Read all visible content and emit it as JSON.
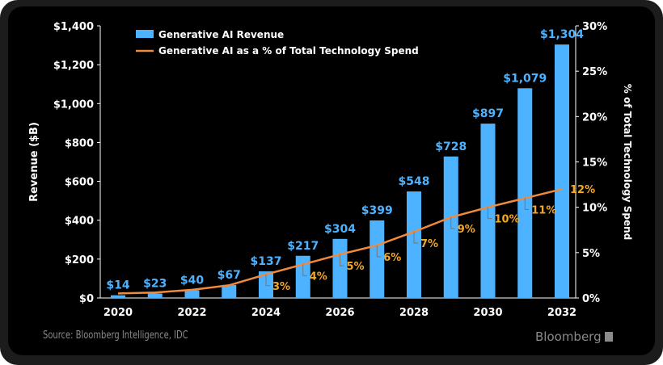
{
  "chart_data": {
    "type": "bar",
    "categories": [
      2020,
      2021,
      2022,
      2023,
      2024,
      2025,
      2026,
      2027,
      2028,
      2029,
      2030,
      2031,
      2032
    ],
    "x_tick_labels": [
      "2020",
      "2022",
      "2024",
      "2026",
      "2028",
      "2030",
      "2032"
    ],
    "series": [
      {
        "name": "Generative AI Revenue",
        "type": "bar",
        "axis": "left",
        "color": "#4db2ff",
        "values": [
          14,
          23,
          40,
          67,
          137,
          217,
          304,
          399,
          548,
          728,
          897,
          1079,
          1304
        ],
        "labels": [
          "$14",
          "$23",
          "$40",
          "$67",
          "$137",
          "$217",
          "$304",
          "$399",
          "$548",
          "$728",
          "$897",
          "$1,079",
          "$1,304"
        ]
      },
      {
        "name": "Generative AI as a % of Total Technology Spend",
        "type": "line",
        "axis": "right",
        "color": "#f08a3c",
        "values": [
          0.5,
          0.6,
          0.9,
          1.4,
          2.6,
          3.7,
          4.8,
          5.8,
          7.3,
          8.9,
          10,
          11,
          12
        ],
        "labels": [
          "",
          "",
          "",
          "",
          "3%",
          "4%",
          "5%",
          "6%",
          "7%",
          "9%",
          "10%",
          "11%",
          "12%"
        ],
        "label_color": "#f5a623"
      }
    ],
    "ylabel": "Revenue ($B)",
    "ylim": [
      0,
      1400
    ],
    "y_tick_labels": [
      "$0",
      "$200",
      "$400",
      "$600",
      "$800",
      "$1,000",
      "$1,200",
      "$1,400"
    ],
    "y2label": "% of Total Technology Spend",
    "y2lim": [
      0,
      30
    ],
    "y2_tick_labels": [
      "0%",
      "5%",
      "10%",
      "15%",
      "20%",
      "25%",
      "30%"
    ],
    "grid": false,
    "legend_placement": "top-left"
  },
  "footer": {
    "source": "Source: Bloomberg Intelligence, IDC",
    "brand": "Bloomberg"
  }
}
